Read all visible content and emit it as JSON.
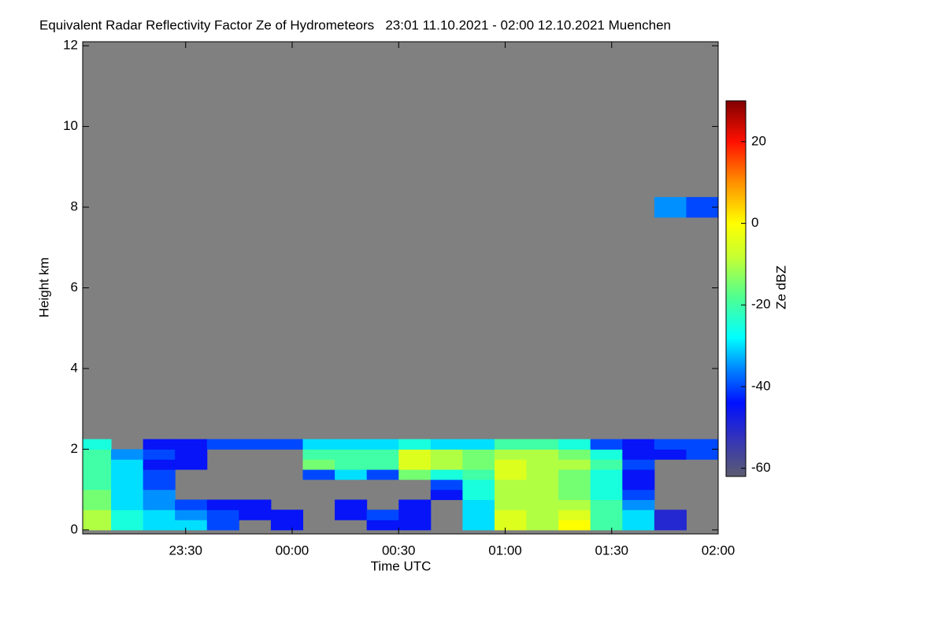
{
  "chart_data": {
    "type": "heatmap",
    "title": "Equivalent Radar Reflectivity Factor Ze of Hydrometeors   23:01 11.10.2021 - 02:00 12.10.2021 Muenchen",
    "x_label": "Time UTC",
    "y_label": "Height km",
    "colorbar_label": "Ze dBZ",
    "xlim": [
      23.0167,
      26.0
    ],
    "xticks": [
      {
        "value": 23.5,
        "label": "23:30"
      },
      {
        "value": 24.0,
        "label": "00:00"
      },
      {
        "value": 24.5,
        "label": "00:30"
      },
      {
        "value": 25.0,
        "label": "01:00"
      },
      {
        "value": 25.5,
        "label": "01:30"
      },
      {
        "value": 26.0,
        "label": "02:00"
      }
    ],
    "ylim": [
      -0.1,
      12.1
    ],
    "yticks": [
      0,
      2,
      4,
      6,
      8,
      10,
      12
    ],
    "zlim": [
      -62,
      30
    ],
    "zticks": [
      -60,
      -40,
      -20,
      0,
      20
    ],
    "background_color": "#808080",
    "colorscale": [
      [
        -62,
        "#5c5c70"
      ],
      [
        -52,
        "#3030c0"
      ],
      [
        -44,
        "#0010ff"
      ],
      [
        -36,
        "#0080ff"
      ],
      [
        -28,
        "#00ffff"
      ],
      [
        -18,
        "#50ff90"
      ],
      [
        -8,
        "#c8ff30"
      ],
      [
        0,
        "#ffff00"
      ],
      [
        10,
        "#ff9000"
      ],
      [
        20,
        "#ff1000"
      ],
      [
        30,
        "#800000"
      ]
    ],
    "x_bins": [
      23.0167,
      23.15,
      23.3,
      23.45,
      23.6,
      23.75,
      23.9,
      24.05,
      24.2,
      24.35,
      24.5,
      24.65,
      24.8,
      24.95,
      25.1,
      25.25,
      25.4,
      25.55,
      25.7,
      25.85,
      26.0
    ],
    "y_bins": [
      0,
      0.25,
      0.5,
      0.75,
      1.0,
      1.25,
      1.5,
      1.75,
      2.0,
      2.25,
      7.75,
      8.25
    ],
    "values": [
      [
        -10,
        -25,
        -30,
        -30,
        -40,
        null,
        -45,
        null,
        null,
        -45,
        -45,
        null,
        -30,
        -5,
        -10,
        0,
        -20,
        -30,
        -50,
        null
      ],
      [
        -10,
        -25,
        -30,
        -35,
        -40,
        -45,
        -45,
        null,
        -45,
        -40,
        -45,
        null,
        -30,
        -5,
        -10,
        -5,
        -20,
        -30,
        -50,
        null
      ],
      [
        -15,
        -30,
        -35,
        -40,
        -45,
        -45,
        null,
        null,
        -45,
        null,
        -45,
        null,
        -30,
        -10,
        -10,
        -10,
        -20,
        -35,
        null,
        null
      ],
      [
        -15,
        -30,
        -35,
        null,
        null,
        null,
        null,
        null,
        null,
        null,
        null,
        -45,
        -25,
        -10,
        -10,
        -15,
        -25,
        -40,
        null,
        null
      ],
      [
        -20,
        -30,
        -40,
        null,
        null,
        null,
        null,
        null,
        null,
        null,
        null,
        -40,
        -25,
        -10,
        -10,
        -15,
        -25,
        -45,
        null,
        null
      ],
      [
        -20,
        -30,
        -40,
        null,
        null,
        null,
        null,
        -40,
        -30,
        -40,
        -15,
        -25,
        -20,
        -5,
        -10,
        -15,
        -25,
        -45,
        null,
        null
      ],
      [
        -20,
        -30,
        -45,
        -45,
        null,
        null,
        null,
        -15,
        -20,
        -20,
        -5,
        -10,
        -15,
        -5,
        -10,
        -10,
        -20,
        -40,
        null,
        null
      ],
      [
        -20,
        -35,
        -40,
        -45,
        null,
        null,
        null,
        -20,
        -20,
        -20,
        -5,
        -10,
        -15,
        -10,
        -10,
        -15,
        -25,
        -45,
        -45,
        -40
      ],
      [
        -25,
        null,
        -45,
        -45,
        -40,
        -40,
        -40,
        -30,
        -30,
        -30,
        -25,
        -30,
        -30,
        -20,
        -20,
        -25,
        -40,
        -45,
        -40,
        -40
      ],
      [
        null,
        null,
        null,
        null,
        null,
        null,
        null,
        null,
        null,
        null,
        null,
        null,
        null,
        null,
        null,
        null,
        null,
        null,
        null,
        null
      ],
      [
        null,
        null,
        null,
        null,
        null,
        null,
        null,
        null,
        null,
        null,
        null,
        null,
        null,
        null,
        null,
        null,
        null,
        null,
        -35,
        -40
      ]
    ]
  }
}
